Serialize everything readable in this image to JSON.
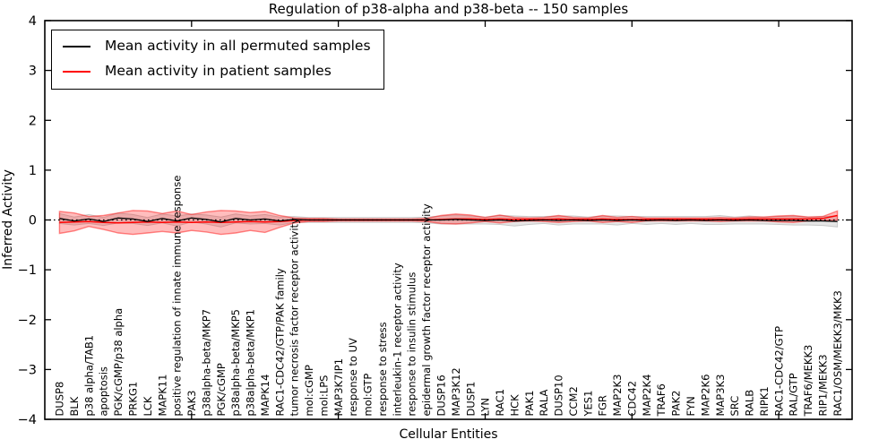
{
  "title": "Regulation of p38-alpha and p38-beta -- 150 samples",
  "legend": {
    "items": [
      {
        "label": "Mean activity in all permuted samples",
        "color": "#000000"
      },
      {
        "label": "Mean activity in patient samples",
        "color": "#ff0000"
      }
    ]
  },
  "axes": {
    "x_label": "Cellular Entities",
    "y_label": "Inferred Activity",
    "y_ticks": [
      4,
      3,
      2,
      1,
      0,
      -1,
      -2,
      -3,
      -4
    ]
  },
  "chart_data": {
    "type": "line",
    "title": "Regulation of p38-alpha and p38-beta -- 150 samples",
    "xlabel": "Cellular Entities",
    "ylabel": "Inferred Activity",
    "ylim": [
      -4,
      4
    ],
    "grid": false,
    "legend_position": "upper left",
    "zero_line": true,
    "x_major_ticks": [
      10,
      20,
      30,
      40,
      50
    ],
    "categories": [
      "DUSP8",
      "BLK",
      "p38 alpha/TAB1",
      "apoptosis",
      "PGK/cGMP/p38 alpha",
      "PRKG1",
      "LCK",
      "MAPK11",
      "positive regulation of innate immune response",
      "PAK3",
      "p38alpha-beta/MKP7",
      "PGK/cGMP",
      "p38alpha-beta/MKP5",
      "p38alpha-beta/MKP1",
      "MAPK14",
      "RAC1-CDC42/GTP/PAK family",
      "tumor necrosis factor receptor activity",
      "mol:cGMP",
      "mol:LPS",
      "MAP3K7IP1",
      "response to UV",
      "mol:GTP",
      "response to stress",
      "interleukin-1 receptor activity",
      "response to insulin stimulus",
      "epidermal growth factor receptor activity",
      "DUSP16",
      "MAP3K12",
      "DUSP1",
      "LYN",
      "RAC1",
      "HCK",
      "PAK1",
      "RALA",
      "DUSP10",
      "CCM2",
      "YES1",
      "FGR",
      "MAP2K3",
      "CDC42",
      "MAP2K4",
      "TRAF6",
      "PAK2",
      "FYN",
      "MAP2K6",
      "MAP3K3",
      "SRC",
      "RALB",
      "RIPK1",
      "RAC1-CDC42/GTP",
      "RAL/GTP",
      "TRAF6/MEKK3",
      "RIP1/MEKK3",
      "RAC1/OSM/MEKK3/MKK3"
    ],
    "series": [
      {
        "name": "Mean activity in all permuted samples",
        "color": "#000000",
        "band_color": "#bbbbbb",
        "values": [
          0.03,
          -0.02,
          0.02,
          -0.03,
          0.04,
          0.02,
          -0.03,
          0.03,
          -0.02,
          0.04,
          0.01,
          -0.04,
          0.03,
          0.0,
          0.02,
          -0.02,
          0.01,
          0,
          0,
          0,
          0,
          0,
          0,
          0,
          0,
          0,
          0,
          0.01,
          0,
          -0.01,
          0,
          -0.02,
          -0.01,
          0,
          -0.01,
          0,
          -0.01,
          0,
          -0.01,
          0,
          -0.01,
          0,
          -0.01,
          0,
          -0.01,
          0,
          -0.01,
          0,
          -0.01,
          -0.01,
          -0.01,
          -0.02,
          -0.02,
          -0.03
        ],
        "band_halfwidth": [
          0.1,
          0.08,
          0.09,
          0.08,
          0.1,
          0.09,
          0.08,
          0.09,
          0.1,
          0.08,
          0.09,
          0.1,
          0.09,
          0.08,
          0.09,
          0.08,
          0.06,
          0.05,
          0.05,
          0.05,
          0.05,
          0.05,
          0.05,
          0.05,
          0.05,
          0.06,
          0.08,
          0.09,
          0.08,
          0.07,
          0.09,
          0.1,
          0.08,
          0.07,
          0.09,
          0.08,
          0.07,
          0.08,
          0.09,
          0.07,
          0.08,
          0.07,
          0.08,
          0.07,
          0.08,
          0.09,
          0.07,
          0.08,
          0.07,
          0.08,
          0.09,
          0.08,
          0.09,
          0.11
        ]
      },
      {
        "name": "Mean activity in patient samples",
        "color": "#ff0000",
        "band_color": "#ff0000",
        "values": [
          -0.05,
          -0.04,
          -0.03,
          -0.05,
          -0.06,
          -0.05,
          -0.04,
          -0.05,
          -0.04,
          -0.05,
          -0.04,
          -0.05,
          -0.04,
          -0.03,
          -0.04,
          -0.03,
          -0.01,
          0,
          0,
          0,
          0,
          0,
          0,
          0,
          0,
          0,
          0.01,
          0.02,
          0.02,
          0.01,
          0.02,
          0.01,
          0.01,
          0.01,
          0.02,
          0.01,
          0.01,
          0.02,
          0.01,
          0.01,
          0.01,
          0.01,
          0.01,
          0.01,
          0.01,
          0.01,
          0.01,
          0.02,
          0.02,
          0.02,
          0.02,
          0.02,
          0.03,
          0.09
        ],
        "band_halfwidth": [
          0.22,
          0.18,
          0.1,
          0.14,
          0.2,
          0.24,
          0.22,
          0.18,
          0.22,
          0.16,
          0.2,
          0.24,
          0.22,
          0.18,
          0.21,
          0.12,
          0.05,
          0.03,
          0.03,
          0.02,
          0.02,
          0.02,
          0.02,
          0.02,
          0.02,
          0.03,
          0.08,
          0.1,
          0.08,
          0.04,
          0.08,
          0.04,
          0.03,
          0.04,
          0.07,
          0.04,
          0.03,
          0.07,
          0.04,
          0.06,
          0.03,
          0.03,
          0.03,
          0.03,
          0.03,
          0.04,
          0.03,
          0.04,
          0.04,
          0.06,
          0.07,
          0.04,
          0.04,
          0.09
        ]
      }
    ]
  }
}
